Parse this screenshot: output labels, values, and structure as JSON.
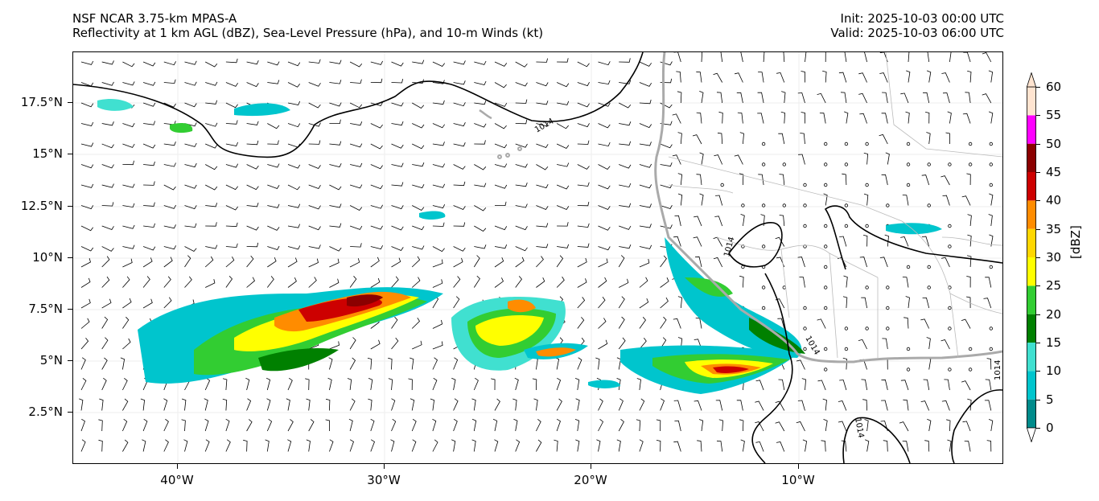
{
  "header": {
    "model": "NSF NCAR 3.75-km MPAS-A",
    "description": "Reflectivity at 1 km AGL (dBZ), Sea-Level Pressure (hPa), and 10-m Winds (kt)",
    "init": "Init: 2025-10-03 00:00 UTC",
    "valid": "Valid: 2025-10-03 06:00 UTC"
  },
  "axes": {
    "lat_labels": [
      "17.5°N",
      "15°N",
      "12.5°N",
      "10°N",
      "7.5°N",
      "5°N",
      "2.5°N"
    ],
    "lon_labels": [
      "40°W",
      "30°W",
      "20°W",
      "10°W"
    ],
    "lat_range": [
      0,
      20
    ],
    "lon_range": [
      -45,
      -0.2
    ]
  },
  "isobar_labels": [
    "1014",
    "1014",
    "1014",
    "1014",
    "1014"
  ],
  "colorbar": {
    "title": "[dBZ]",
    "ticks": [
      "60",
      "55",
      "50",
      "45",
      "40",
      "35",
      "30",
      "25",
      "20",
      "15",
      "10",
      "5",
      "0"
    ],
    "colors": [
      "#ffffff",
      "#008b8b",
      "#00c5cd",
      "#40e0d0",
      "#008000",
      "#32cd32",
      "#ffff00",
      "#ffd700",
      "#ff8c00",
      "#cd0000",
      "#8b0000",
      "#ff00ff",
      "#ffe4d0"
    ]
  },
  "colors": {
    "coastline": "#aaaaaa",
    "borders": "#bbbbbb",
    "isobar": "#000000"
  }
}
